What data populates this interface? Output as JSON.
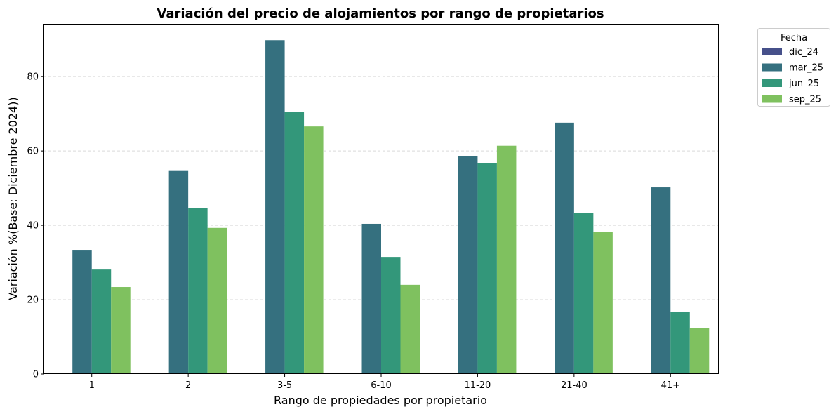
{
  "chart_data": {
    "type": "bar",
    "title": "Variación del precio de alojamientos por rango de propietarios",
    "xlabel": "Rango de propiedades por propietario",
    "ylabel": "Variación %(Base: Diciembre 2024))",
    "categories": [
      "1",
      "2",
      "3-5",
      "6-10",
      "11-20",
      "21-40",
      "41+"
    ],
    "series": [
      {
        "name": "dic_24",
        "color": "#46508a",
        "values": [
          0,
          0,
          0,
          0,
          0,
          0,
          0
        ]
      },
      {
        "name": "mar_25",
        "color": "#35707f",
        "values": [
          33.4,
          54.8,
          89.8,
          40.4,
          58.6,
          67.6,
          50.2
        ]
      },
      {
        "name": "jun_25",
        "color": "#33977a",
        "values": [
          28.1,
          44.6,
          70.5,
          31.5,
          56.8,
          43.4,
          16.8
        ]
      },
      {
        "name": "sep_25",
        "color": "#7fc15f",
        "values": [
          23.4,
          39.3,
          66.6,
          24.0,
          61.4,
          38.2,
          12.4
        ]
      }
    ],
    "ylim": [
      0,
      94
    ],
    "yticks": [
      0,
      20,
      40,
      60,
      80
    ],
    "grid": "y-dashed",
    "legend": {
      "title": "Fecha",
      "placement": "outside-top-right"
    }
  }
}
